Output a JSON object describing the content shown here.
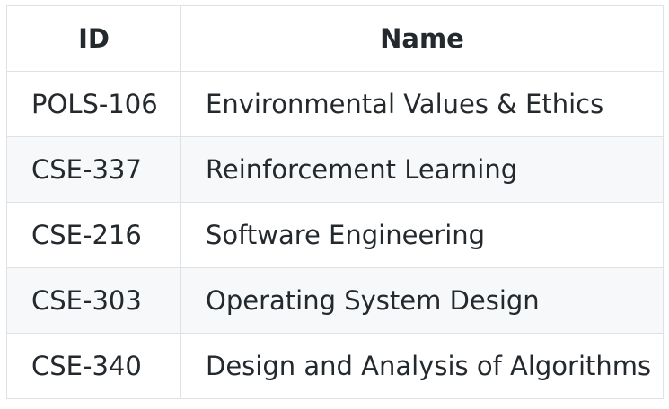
{
  "table": {
    "headers": [
      "ID",
      "Name"
    ],
    "rows": [
      {
        "id": "POLS-106",
        "name": "Environmental Values & Ethics"
      },
      {
        "id": "CSE-337",
        "name": "Reinforcement Learning"
      },
      {
        "id": "CSE-216",
        "name": "Software Engineering"
      },
      {
        "id": "CSE-303",
        "name": "Operating System Design"
      },
      {
        "id": "CSE-340",
        "name": "Design and Analysis of Algorithms"
      }
    ],
    "colors": {
      "border": "#dfe2e5",
      "alt_row": "#f6f8fa",
      "text": "#24292e"
    }
  }
}
